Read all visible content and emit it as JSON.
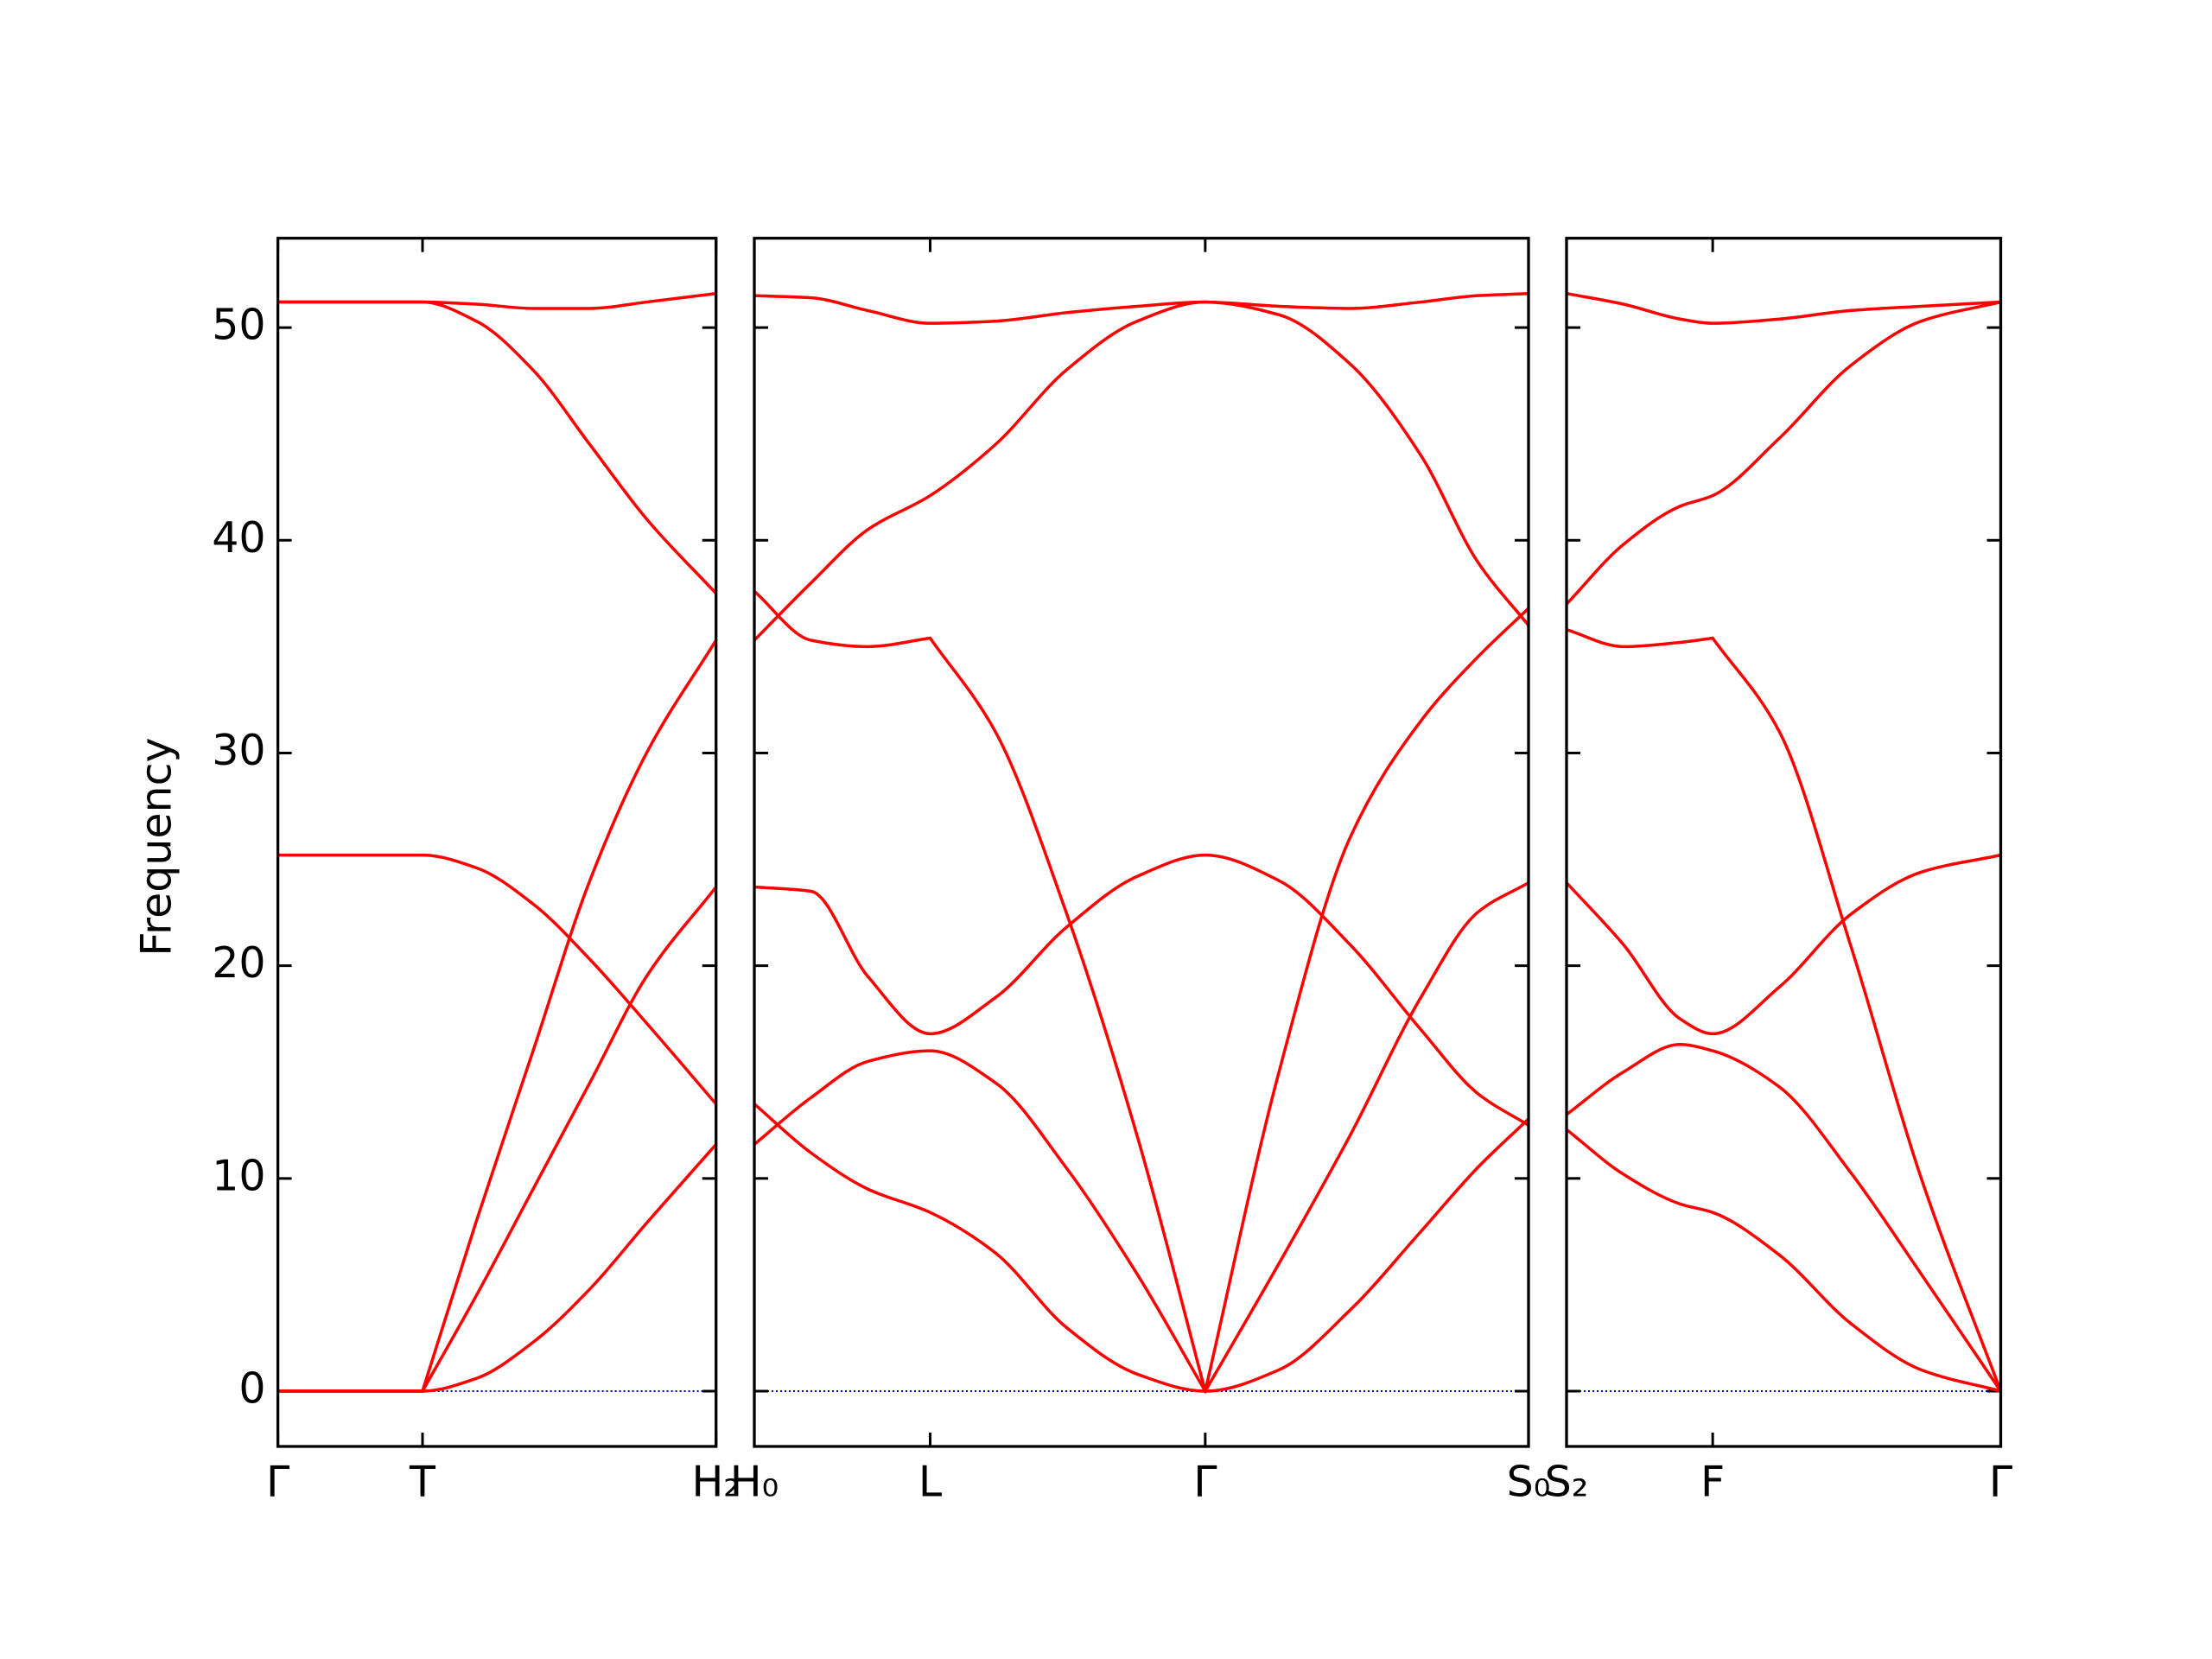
{
  "chart_data": [
    {
      "type": "line",
      "ylabel": "Frequency",
      "color": "#ff0000",
      "ylim": [
        -2.6,
        54.2
      ],
      "yticks": [
        0,
        10,
        20,
        30,
        40,
        50
      ],
      "xlim": [
        0,
        3.09
      ],
      "xticks": [
        {
          "value": 0,
          "label": "Γ"
        },
        {
          "value": 1.02,
          "label": "T"
        },
        {
          "value": 3.09,
          "label": "H₂"
        }
      ],
      "zero_line": {
        "value": 0,
        "color": "#0000cc"
      },
      "x": [
        0,
        1.02,
        1.4,
        1.8,
        2.2,
        2.6,
        3.09
      ],
      "series": [
        {
          "values": [
            51.2,
            51.2,
            51.1,
            50.9,
            50.9,
            51.2,
            51.6
          ]
        },
        {
          "values": [
            51.2,
            51.2,
            50.3,
            48.0,
            44.5,
            41.0,
            37.5
          ]
        },
        {
          "values": [
            25.2,
            25.2,
            24.6,
            22.9,
            20.3,
            17.3,
            13.5
          ]
        },
        {
          "values": [
            0,
            0,
            8,
            16,
            24,
            30,
            35.3
          ]
        },
        {
          "values": [
            0,
            0,
            4.5,
            9.5,
            14.5,
            19.5,
            23.7
          ]
        },
        {
          "values": [
            0,
            0,
            0.6,
            2.3,
            4.8,
            7.9,
            11.6
          ]
        }
      ]
    },
    {
      "type": "line",
      "color": "#ff0000",
      "xlim": [
        0,
        5.46
      ],
      "xticks": [
        {
          "value": 0,
          "label": "H₀"
        },
        {
          "value": 1.24,
          "label": "L"
        },
        {
          "value": 3.18,
          "label": "Γ"
        },
        {
          "value": 5.46,
          "label": "S₀"
        }
      ],
      "zero_line": {
        "value": 0,
        "color": "#0000cc"
      },
      "x": [
        0,
        0.4,
        0.8,
        1.24,
        1.7,
        2.2,
        2.7,
        3.18,
        3.7,
        4.2,
        4.7,
        5.1,
        5.46
      ],
      "series": [
        {
          "values": [
            51.5,
            51.4,
            50.8,
            50.2,
            50.3,
            50.7,
            51.0,
            51.2,
            51.0,
            50.9,
            51.2,
            51.5,
            51.6
          ]
        },
        {
          "values": [
            35.3,
            38,
            40.5,
            42.1,
            44.5,
            48,
            50.3,
            51.2,
            50.6,
            48.3,
            44,
            39,
            36
          ]
        },
        {
          "values": [
            37.6,
            35.3,
            35.0,
            35.4,
            31,
            22.5,
            12,
            0,
            15,
            26,
            31.5,
            34.5,
            36.8
          ]
        },
        {
          "values": [
            23.7,
            23.5,
            19.5,
            16.8,
            18.5,
            21.8,
            24.2,
            25.2,
            24,
            21,
            17,
            14,
            12.5
          ]
        },
        {
          "values": [
            11.6,
            13.8,
            15.5,
            16.0,
            14.5,
            10.5,
            5.5,
            0,
            6,
            12,
            18.5,
            22.5,
            23.9
          ]
        },
        {
          "values": [
            13.5,
            11.2,
            9.5,
            8.4,
            6.5,
            3,
            0.8,
            0,
            1,
            3.8,
            7.5,
            10.5,
            12.8
          ]
        }
      ]
    },
    {
      "type": "line",
      "color": "#ff0000",
      "xlim": [
        0,
        3.06
      ],
      "xticks": [
        {
          "value": 0,
          "label": "S₂"
        },
        {
          "value": 1.03,
          "label": "F"
        },
        {
          "value": 3.06,
          "label": "Γ"
        }
      ],
      "zero_line": {
        "value": 0,
        "color": "#0000cc"
      },
      "x": [
        0,
        0.4,
        0.8,
        1.03,
        1.5,
        2.0,
        2.5,
        3.06
      ],
      "series": [
        {
          "values": [
            51.6,
            51.1,
            50.4,
            50.2,
            50.4,
            50.8,
            51.0,
            51.2
          ]
        },
        {
          "values": [
            37,
            39.8,
            41.6,
            42.1,
            44.8,
            48.2,
            50.3,
            51.2
          ]
        },
        {
          "values": [
            35.8,
            35.0,
            35.2,
            35.4,
            31,
            21,
            10,
            0
          ]
        },
        {
          "values": [
            23.9,
            21,
            17.5,
            16.8,
            19,
            22.4,
            24.4,
            25.2
          ]
        },
        {
          "values": [
            13,
            15,
            16.3,
            16.0,
            14.3,
            10.3,
            5.5,
            0
          ]
        },
        {
          "values": [
            12.3,
            10.2,
            8.8,
            8.4,
            6.4,
            3.2,
            1.0,
            0
          ]
        }
      ]
    }
  ]
}
